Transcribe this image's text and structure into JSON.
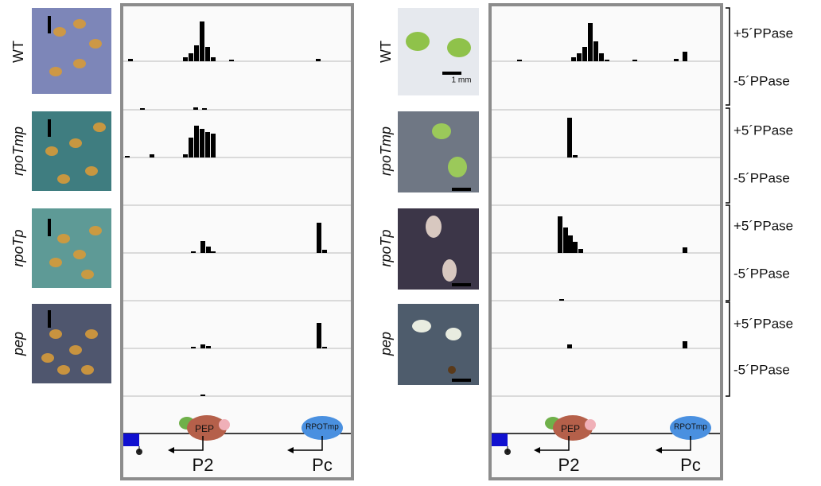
{
  "left_panel": {
    "genotypes": [
      "WT",
      "rpoTmp",
      "rpoTp",
      "pep"
    ],
    "polymerases": [
      "PEP",
      "RPOTmp"
    ],
    "promoters": [
      "P2",
      "Pc"
    ]
  },
  "right_panel": {
    "genotypes": [
      "WT",
      "rpoTmp",
      "rpoTp",
      "pep"
    ],
    "polymerases": [
      "PEP",
      "RPOTmp"
    ],
    "promoters": [
      "P2",
      "Pc"
    ]
  },
  "scale_label": "1 mm",
  "treatments": [
    "+5´PPase",
    "-5´PPase",
    "+5´PPase",
    "-5´PPase",
    "+5´PPase",
    "-5´PPase",
    "+5´PPase",
    "-5´PPase"
  ]
}
